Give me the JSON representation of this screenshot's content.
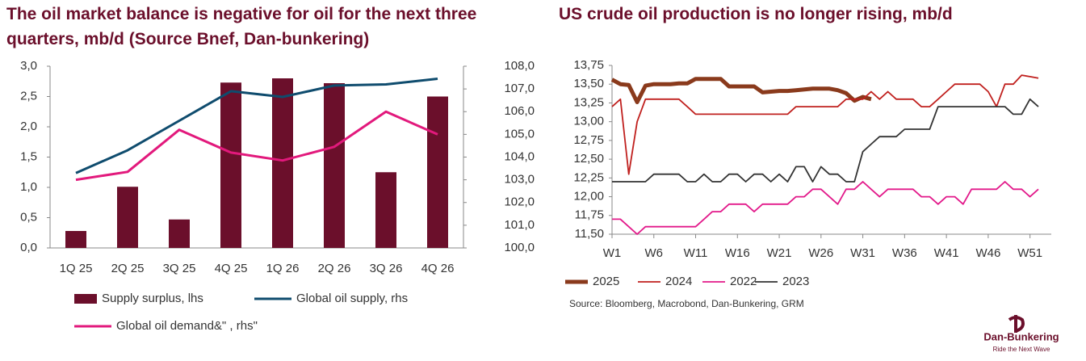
{
  "charts": [
    {
      "type": "bar",
      "title": "The oil market balance is negative for oil for the next three quarters, mb/d  (Source Bnef, Dan-bunkering)",
      "categories": [
        "1Q 25",
        "2Q 25",
        "3Q 25",
        "4Q 25",
        "1Q 26",
        "2Q 26",
        "3Q 26",
        "4Q 26"
      ],
      "series": [
        {
          "name": "Supply surplus, lhs",
          "type": "bar",
          "color": "#6b0f2b",
          "values": [
            0.28,
            1.01,
            0.47,
            2.73,
            2.8,
            2.72,
            1.25,
            2.5
          ]
        },
        {
          "name": "Global oil supply, rhs",
          "type": "line",
          "axis": "y2",
          "color": "#0f4c6e",
          "values": [
            103.3,
            104.3,
            105.6,
            106.9,
            106.65,
            107.15,
            107.2,
            107.45
          ]
        },
        {
          "name": "Global oil demand&\" , rhs\"",
          "type": "line",
          "axis": "y2",
          "color": "#e2197c",
          "values": [
            103.0,
            103.35,
            105.2,
            104.2,
            103.85,
            104.45,
            106.0,
            105.0
          ]
        }
      ],
      "ylim": [
        0,
        3
      ],
      "yticks": [
        {
          "value": 0,
          "label": "0,0"
        },
        {
          "value": 0.5,
          "label": "0,5"
        },
        {
          "value": 1,
          "label": "1,0"
        },
        {
          "value": 1.5,
          "label": "1,5"
        },
        {
          "value": 2,
          "label": "2,0"
        },
        {
          "value": 2.5,
          "label": "2,5"
        },
        {
          "value": 3,
          "label": "3,0"
        }
      ],
      "y2lim": [
        100,
        108
      ],
      "y2ticks": [
        {
          "value": 100,
          "label": "100,0"
        },
        {
          "value": 101,
          "label": "101,0"
        },
        {
          "value": 102,
          "label": "102,0"
        },
        {
          "value": 103,
          "label": "103,0"
        },
        {
          "value": 104,
          "label": "104,0"
        },
        {
          "value": 105,
          "label": "105,0"
        },
        {
          "value": 106,
          "label": "106,0"
        },
        {
          "value": 107,
          "label": "107,0"
        },
        {
          "value": 108,
          "label": "108,0"
        }
      ]
    },
    {
      "type": "line",
      "title": "US crude oil production is no longer rising, mb/d",
      "categories": [
        "W1",
        null,
        null,
        null,
        null,
        "W6",
        null,
        null,
        null,
        null,
        "W11",
        null,
        null,
        null,
        null,
        "W16",
        null,
        null,
        null,
        null,
        "W21",
        null,
        null,
        null,
        null,
        "W26",
        null,
        null,
        null,
        null,
        "W31",
        null,
        null,
        null,
        null,
        "W36",
        null,
        null,
        null,
        null,
        "W41",
        null,
        null,
        null,
        null,
        "W46",
        null,
        null,
        null,
        null,
        "W51",
        null
      ],
      "series": [
        {
          "name": "2025",
          "color": "#8a3a1c",
          "values": [
            13.56,
            13.5,
            13.49,
            13.26,
            13.48,
            13.5,
            13.5,
            13.5,
            13.51,
            13.51,
            13.57,
            13.57,
            13.57,
            13.57,
            13.47,
            13.47,
            13.47,
            13.47,
            13.39,
            13.4,
            13.41,
            13.41,
            13.42,
            13.43,
            13.44,
            13.44,
            13.44,
            13.42,
            13.38,
            13.28,
            13.33,
            13.3,
            null,
            null,
            null,
            null,
            null,
            null,
            null,
            null,
            null,
            null,
            null,
            null,
            null,
            null,
            null,
            null,
            null,
            null,
            null,
            null
          ]
        },
        {
          "name": "2024",
          "color": "#c0201e",
          "values": [
            13.2,
            13.3,
            12.3,
            13.0,
            13.3,
            13.3,
            13.3,
            13.3,
            13.3,
            13.2,
            13.1,
            13.1,
            13.1,
            13.1,
            13.1,
            13.1,
            13.1,
            13.1,
            13.1,
            13.1,
            13.1,
            13.1,
            13.2,
            13.2,
            13.2,
            13.2,
            13.2,
            13.2,
            13.3,
            13.3,
            13.3,
            13.4,
            13.3,
            13.4,
            13.3,
            13.3,
            13.3,
            13.2,
            13.2,
            13.3,
            13.4,
            13.5,
            13.5,
            13.5,
            13.5,
            13.4,
            13.2,
            13.5,
            13.5,
            13.62,
            13.6,
            13.58
          ]
        },
        {
          "name": "2022",
          "color": "#e2198a",
          "values": [
            11.7,
            11.7,
            11.6,
            11.5,
            11.6,
            11.6,
            11.6,
            11.6,
            11.6,
            11.6,
            11.6,
            11.7,
            11.8,
            11.8,
            11.9,
            11.9,
            11.9,
            11.8,
            11.9,
            11.9,
            11.9,
            11.9,
            12.0,
            12.0,
            12.1,
            12.1,
            12.0,
            11.9,
            12.1,
            12.1,
            12.2,
            12.1,
            12.0,
            12.1,
            12.1,
            12.1,
            12.1,
            12.0,
            12.0,
            11.9,
            12.0,
            12.0,
            11.9,
            12.1,
            12.1,
            12.1,
            12.1,
            12.2,
            12.1,
            12.1,
            12.0,
            12.1
          ]
        },
        {
          "name": "2023",
          "color": "#333333",
          "values": [
            12.2,
            12.2,
            12.2,
            12.2,
            12.2,
            12.3,
            12.3,
            12.3,
            12.3,
            12.2,
            12.2,
            12.3,
            12.2,
            12.2,
            12.3,
            12.3,
            12.2,
            12.3,
            12.3,
            12.2,
            12.3,
            12.2,
            12.4,
            12.4,
            12.2,
            12.4,
            12.3,
            12.3,
            12.2,
            12.2,
            12.6,
            12.7,
            12.8,
            12.8,
            12.8,
            12.9,
            12.9,
            12.9,
            12.9,
            13.2,
            13.2,
            13.2,
            13.2,
            13.2,
            13.2,
            13.2,
            13.2,
            13.2,
            13.1,
            13.1,
            13.3,
            13.2
          ]
        }
      ],
      "ylim": [
        11.5,
        13.75
      ],
      "yticks": [
        {
          "value": 11.5,
          "label": "11,50"
        },
        {
          "value": 11.75,
          "label": "11,75"
        },
        {
          "value": 12,
          "label": "12,00"
        },
        {
          "value": 12.25,
          "label": "12,25"
        },
        {
          "value": 12.5,
          "label": "12,50"
        },
        {
          "value": 12.75,
          "label": "12,75"
        },
        {
          "value": 13,
          "label": "13,00"
        },
        {
          "value": 13.25,
          "label": "13,25"
        },
        {
          "value": 13.5,
          "label": "13,50"
        },
        {
          "value": 13.75,
          "label": "13,75"
        }
      ],
      "note": "Source: Bloomberg, Macrobond, Dan-Bunkering, GRM"
    }
  ],
  "logo": {
    "name": "Dan-Bunkering",
    "tagline": "Ride the Next Wave"
  }
}
